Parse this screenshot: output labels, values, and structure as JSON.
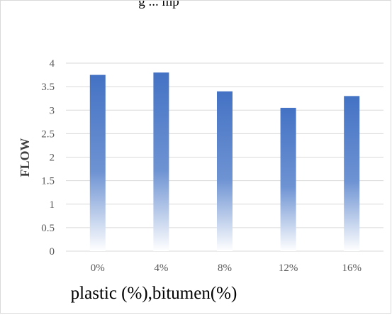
{
  "chart_data": {
    "type": "bar",
    "title": "g ... mp",
    "categories": [
      "0%",
      "4%",
      "8%",
      "12%",
      "16%"
    ],
    "values": [
      3.75,
      3.8,
      3.4,
      3.05,
      3.3
    ],
    "xlabel": "plastic (%),bitumen(%)",
    "ylabel": "FLOW",
    "ylim": [
      0,
      4
    ],
    "yticks": [
      0,
      0.5,
      1,
      1.5,
      2,
      2.5,
      3,
      3.5,
      4
    ],
    "ytick_labels": [
      "0",
      "0.5",
      "1",
      "1.5",
      "2",
      "2.5",
      "3",
      "3.5",
      "4"
    ],
    "grid": true,
    "legend": "none",
    "colors": {
      "bar_top": "#4472c4",
      "bar_bottom": "#ffffff",
      "grid": "#d9d9d9",
      "text": "#595959"
    }
  }
}
